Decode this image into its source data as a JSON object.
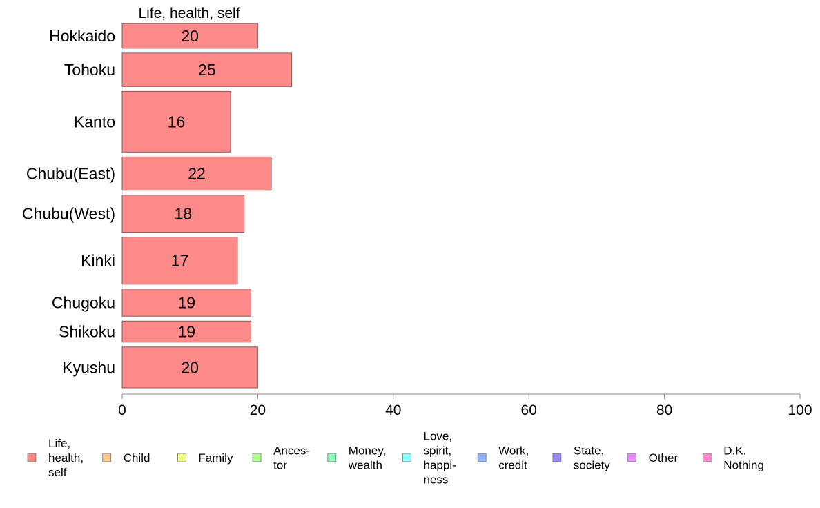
{
  "chart_data": {
    "type": "bar",
    "orientation": "horizontal",
    "title": "Life, health, self",
    "categories": [
      "Hokkaido",
      "Tohoku",
      "Kanto",
      "Chubu(East)",
      "Chubu(West)",
      "Kinki",
      "Chugoku",
      "Shikoku",
      "Kyushu"
    ],
    "category_weights": [
      1,
      1.35,
      2.45,
      1.35,
      1.5,
      1.9,
      1.1,
      0.85,
      1.65
    ],
    "series": [
      {
        "name": "Life, health, self",
        "values": [
          20,
          25,
          16,
          22,
          18,
          17,
          19,
          19,
          20
        ],
        "color": "#ff8a8a"
      }
    ],
    "data_labels": [
      "20",
      "25",
      "16",
      "22",
      "18",
      "17",
      "19",
      "19",
      "20"
    ],
    "xlim": [
      0,
      100
    ],
    "xticks": [
      0,
      20,
      40,
      60,
      80,
      100
    ],
    "xtick_labels": [
      "0",
      "20",
      "40",
      "60",
      "80",
      "100"
    ],
    "xlabel": "",
    "ylabel": "",
    "grid": false,
    "legend_position": "bottom",
    "legend": [
      {
        "lines": [
          "Life,",
          "health,",
          "self"
        ],
        "color": "#ff8a8a"
      },
      {
        "lines": [
          "Child"
        ],
        "color": "#ffc88a"
      },
      {
        "lines": [
          "Family"
        ],
        "color": "#eeff8a"
      },
      {
        "lines": [
          "Ances-",
          "tor"
        ],
        "color": "#a8ff8a"
      },
      {
        "lines": [
          "Money,",
          "wealth"
        ],
        "color": "#8affbe"
      },
      {
        "lines": [
          "Love,",
          "spirit,",
          "happi-",
          "ness"
        ],
        "color": "#8affff"
      },
      {
        "lines": [
          "Work,",
          "credit"
        ],
        "color": "#8ab4ff"
      },
      {
        "lines": [
          "State,",
          "society"
        ],
        "color": "#9a8aff"
      },
      {
        "lines": [
          "Other"
        ],
        "color": "#e68aff"
      },
      {
        "lines": [
          "D.K.",
          "Nothing"
        ],
        "color": "#ff8acd"
      }
    ]
  }
}
